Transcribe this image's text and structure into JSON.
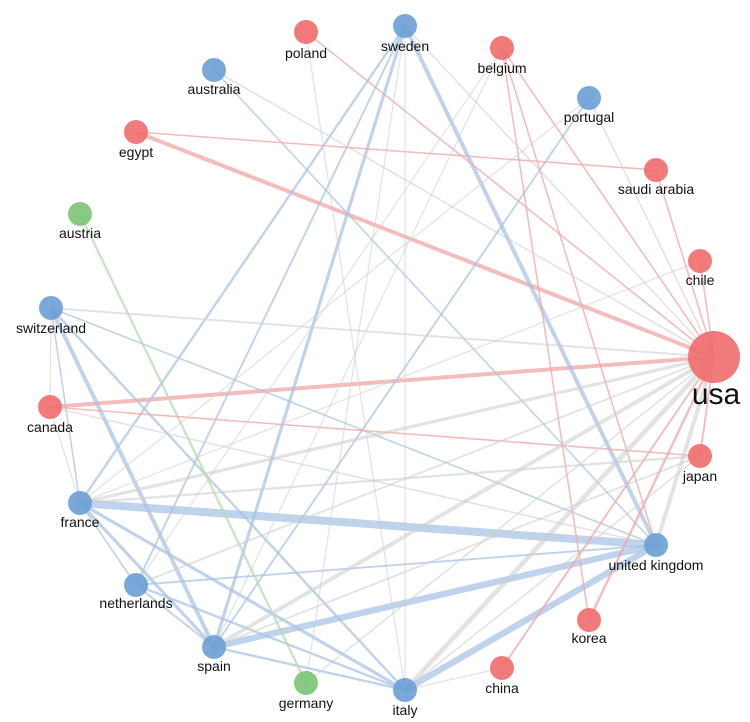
{
  "colors": {
    "red_node": "#ef6b6b",
    "blue_node": "#6b9fd4",
    "green_node": "#7cc476",
    "red_edge": "#f2a6a6",
    "blue_edge": "#aac4e6",
    "green_edge": "#b6deb2",
    "gray_edge": "#cccccc"
  },
  "nodes": [
    {
      "id": "usa",
      "label": "usa",
      "group": "red",
      "size": "large"
    },
    {
      "id": "sweden",
      "label": "sweden",
      "group": "blue",
      "size": "normal"
    },
    {
      "id": "poland",
      "label": "poland",
      "group": "red",
      "size": "normal"
    },
    {
      "id": "belgium",
      "label": "belgium",
      "group": "red",
      "size": "normal"
    },
    {
      "id": "australia",
      "label": "australia",
      "group": "blue",
      "size": "normal"
    },
    {
      "id": "portugal",
      "label": "portugal",
      "group": "blue",
      "size": "normal"
    },
    {
      "id": "egypt",
      "label": "egypt",
      "group": "red",
      "size": "normal"
    },
    {
      "id": "saudi_arabia",
      "label": "saudi arabia",
      "group": "red",
      "size": "normal"
    },
    {
      "id": "austria",
      "label": "austria",
      "group": "green",
      "size": "normal"
    },
    {
      "id": "chile",
      "label": "chile",
      "group": "red",
      "size": "normal"
    },
    {
      "id": "switzerland",
      "label": "switzerland",
      "group": "blue",
      "size": "normal"
    },
    {
      "id": "canada",
      "label": "canada",
      "group": "red",
      "size": "normal"
    },
    {
      "id": "japan",
      "label": "japan",
      "group": "red",
      "size": "normal"
    },
    {
      "id": "france",
      "label": "france",
      "group": "blue",
      "size": "normal"
    },
    {
      "id": "united_kingdom",
      "label": "united kingdom",
      "group": "blue",
      "size": "normal"
    },
    {
      "id": "netherlands",
      "label": "netherlands",
      "group": "blue",
      "size": "normal"
    },
    {
      "id": "korea",
      "label": "korea",
      "group": "red",
      "size": "normal"
    },
    {
      "id": "spain",
      "label": "spain",
      "group": "blue",
      "size": "normal"
    },
    {
      "id": "china",
      "label": "china",
      "group": "red",
      "size": "normal"
    },
    {
      "id": "germany",
      "label": "germany",
      "group": "green",
      "size": "normal"
    },
    {
      "id": "italy",
      "label": "italy",
      "group": "blue",
      "size": "normal"
    }
  ],
  "edges": [
    {
      "source": "france",
      "target": "united_kingdom",
      "color": "blue",
      "weight": 5
    },
    {
      "source": "spain",
      "target": "united_kingdom",
      "color": "blue",
      "weight": 4
    },
    {
      "source": "italy",
      "target": "united_kingdom",
      "color": "blue",
      "weight": 4
    },
    {
      "source": "canada",
      "target": "usa",
      "color": "red",
      "weight": 2.5
    },
    {
      "source": "egypt",
      "target": "usa",
      "color": "red",
      "weight": 2.5
    },
    {
      "source": "sweden",
      "target": "united_kingdom",
      "color": "blue",
      "weight": 2.5
    },
    {
      "source": "switzerland",
      "target": "spain",
      "color": "blue",
      "weight": 2.5
    },
    {
      "source": "switzerland",
      "target": "italy",
      "color": "blue",
      "weight": 1.5
    },
    {
      "source": "france",
      "target": "spain",
      "color": "blue",
      "weight": 2
    },
    {
      "source": "france",
      "target": "italy",
      "color": "blue",
      "weight": 2
    },
    {
      "source": "sweden",
      "target": "spain",
      "color": "blue",
      "weight": 2
    },
    {
      "source": "sweden",
      "target": "france",
      "color": "blue",
      "weight": 1.5
    },
    {
      "source": "sweden",
      "target": "netherlands",
      "color": "blue",
      "weight": 1.2
    },
    {
      "source": "netherlands",
      "target": "italy",
      "color": "blue",
      "weight": 1.5
    },
    {
      "source": "netherlands",
      "target": "united_kingdom",
      "color": "blue",
      "weight": 1.2
    },
    {
      "source": "netherlands",
      "target": "spain",
      "color": "blue",
      "weight": 1.2
    },
    {
      "source": "spain",
      "target": "italy",
      "color": "blue",
      "weight": 1.5
    },
    {
      "source": "portugal",
      "target": "spain",
      "color": "blue",
      "weight": 1.2
    },
    {
      "source": "australia",
      "target": "united_kingdom",
      "color": "blue",
      "weight": 1
    },
    {
      "source": "switzerland",
      "target": "united_kingdom",
      "color": "blue",
      "weight": 1
    },
    {
      "source": "switzerland",
      "target": "france",
      "color": "blue",
      "weight": 1
    },
    {
      "source": "france",
      "target": "netherlands",
      "color": "blue",
      "weight": 1
    },
    {
      "source": "austria",
      "target": "germany",
      "color": "green",
      "weight": 1.5
    },
    {
      "source": "egypt",
      "target": "saudi_arabia",
      "color": "red",
      "weight": 1
    },
    {
      "source": "canada",
      "target": "japan",
      "color": "red",
      "weight": 1
    },
    {
      "source": "poland",
      "target": "usa",
      "color": "red",
      "weight": 1
    },
    {
      "source": "belgium",
      "target": "usa",
      "color": "red",
      "weight": 1
    },
    {
      "source": "belgium",
      "target": "united_kingdom",
      "color": "red",
      "weight": 1
    },
    {
      "source": "belgium",
      "target": "korea",
      "color": "red",
      "weight": 1
    },
    {
      "source": "chile",
      "target": "usa",
      "color": "red",
      "weight": 1
    },
    {
      "source": "saudi_arabia",
      "target": "usa",
      "color": "red",
      "weight": 1
    },
    {
      "source": "usa",
      "target": "korea",
      "color": "red",
      "weight": 1.5
    },
    {
      "source": "usa",
      "target": "china",
      "color": "red",
      "weight": 1.2
    },
    {
      "source": "usa",
      "target": "japan",
      "color": "red",
      "weight": 1.2
    },
    {
      "source": "usa",
      "target": "italy",
      "color": "gray",
      "weight": 3
    },
    {
      "source": "usa",
      "target": "spain",
      "color": "gray",
      "weight": 2.5
    },
    {
      "source": "usa",
      "target": "france",
      "color": "gray",
      "weight": 2
    },
    {
      "source": "usa",
      "target": "united_kingdom",
      "color": "gray",
      "weight": 2.5
    },
    {
      "source": "usa",
      "target": "switzerland",
      "color": "gray",
      "weight": 1.2
    },
    {
      "source": "usa",
      "target": "netherlands",
      "color": "gray",
      "weight": 1.2
    },
    {
      "source": "usa",
      "target": "sweden",
      "color": "gray",
      "weight": 1
    },
    {
      "source": "usa",
      "target": "australia",
      "color": "gray",
      "weight": 1
    },
    {
      "source": "usa",
      "target": "portugal",
      "color": "gray",
      "weight": 1
    },
    {
      "source": "usa",
      "target": "germany",
      "color": "gray",
      "weight": 1
    },
    {
      "source": "japan",
      "target": "france",
      "color": "gray",
      "weight": 1.5
    },
    {
      "source": "japan",
      "target": "spain",
      "color": "gray",
      "weight": 1.2
    },
    {
      "source": "japan",
      "target": "italy",
      "color": "gray",
      "weight": 1
    },
    {
      "source": "italy",
      "target": "poland",
      "color": "gray",
      "weight": 0.8
    },
    {
      "source": "switzerland",
      "target": "canada",
      "color": "gray",
      "weight": 0.8
    },
    {
      "source": "canada",
      "target": "france",
      "color": "gray",
      "weight": 0.8
    },
    {
      "source": "united_kingdom",
      "target": "canada",
      "color": "gray",
      "weight": 1
    },
    {
      "source": "spain",
      "target": "belgium",
      "color": "gray",
      "weight": 0.8
    },
    {
      "source": "france",
      "target": "portugal",
      "color": "gray",
      "weight": 0.8
    },
    {
      "source": "sweden",
      "target": "italy",
      "color": "gray",
      "weight": 0.8
    },
    {
      "source": "sweden",
      "target": "germany",
      "color": "gray",
      "weight": 0.8
    },
    {
      "source": "netherlands",
      "target": "belgium",
      "color": "gray",
      "weight": 0.8
    },
    {
      "source": "italy",
      "target": "china",
      "color": "gray",
      "weight": 0.8
    },
    {
      "source": "france",
      "target": "chile",
      "color": "gray",
      "weight": 0.8
    }
  ]
}
